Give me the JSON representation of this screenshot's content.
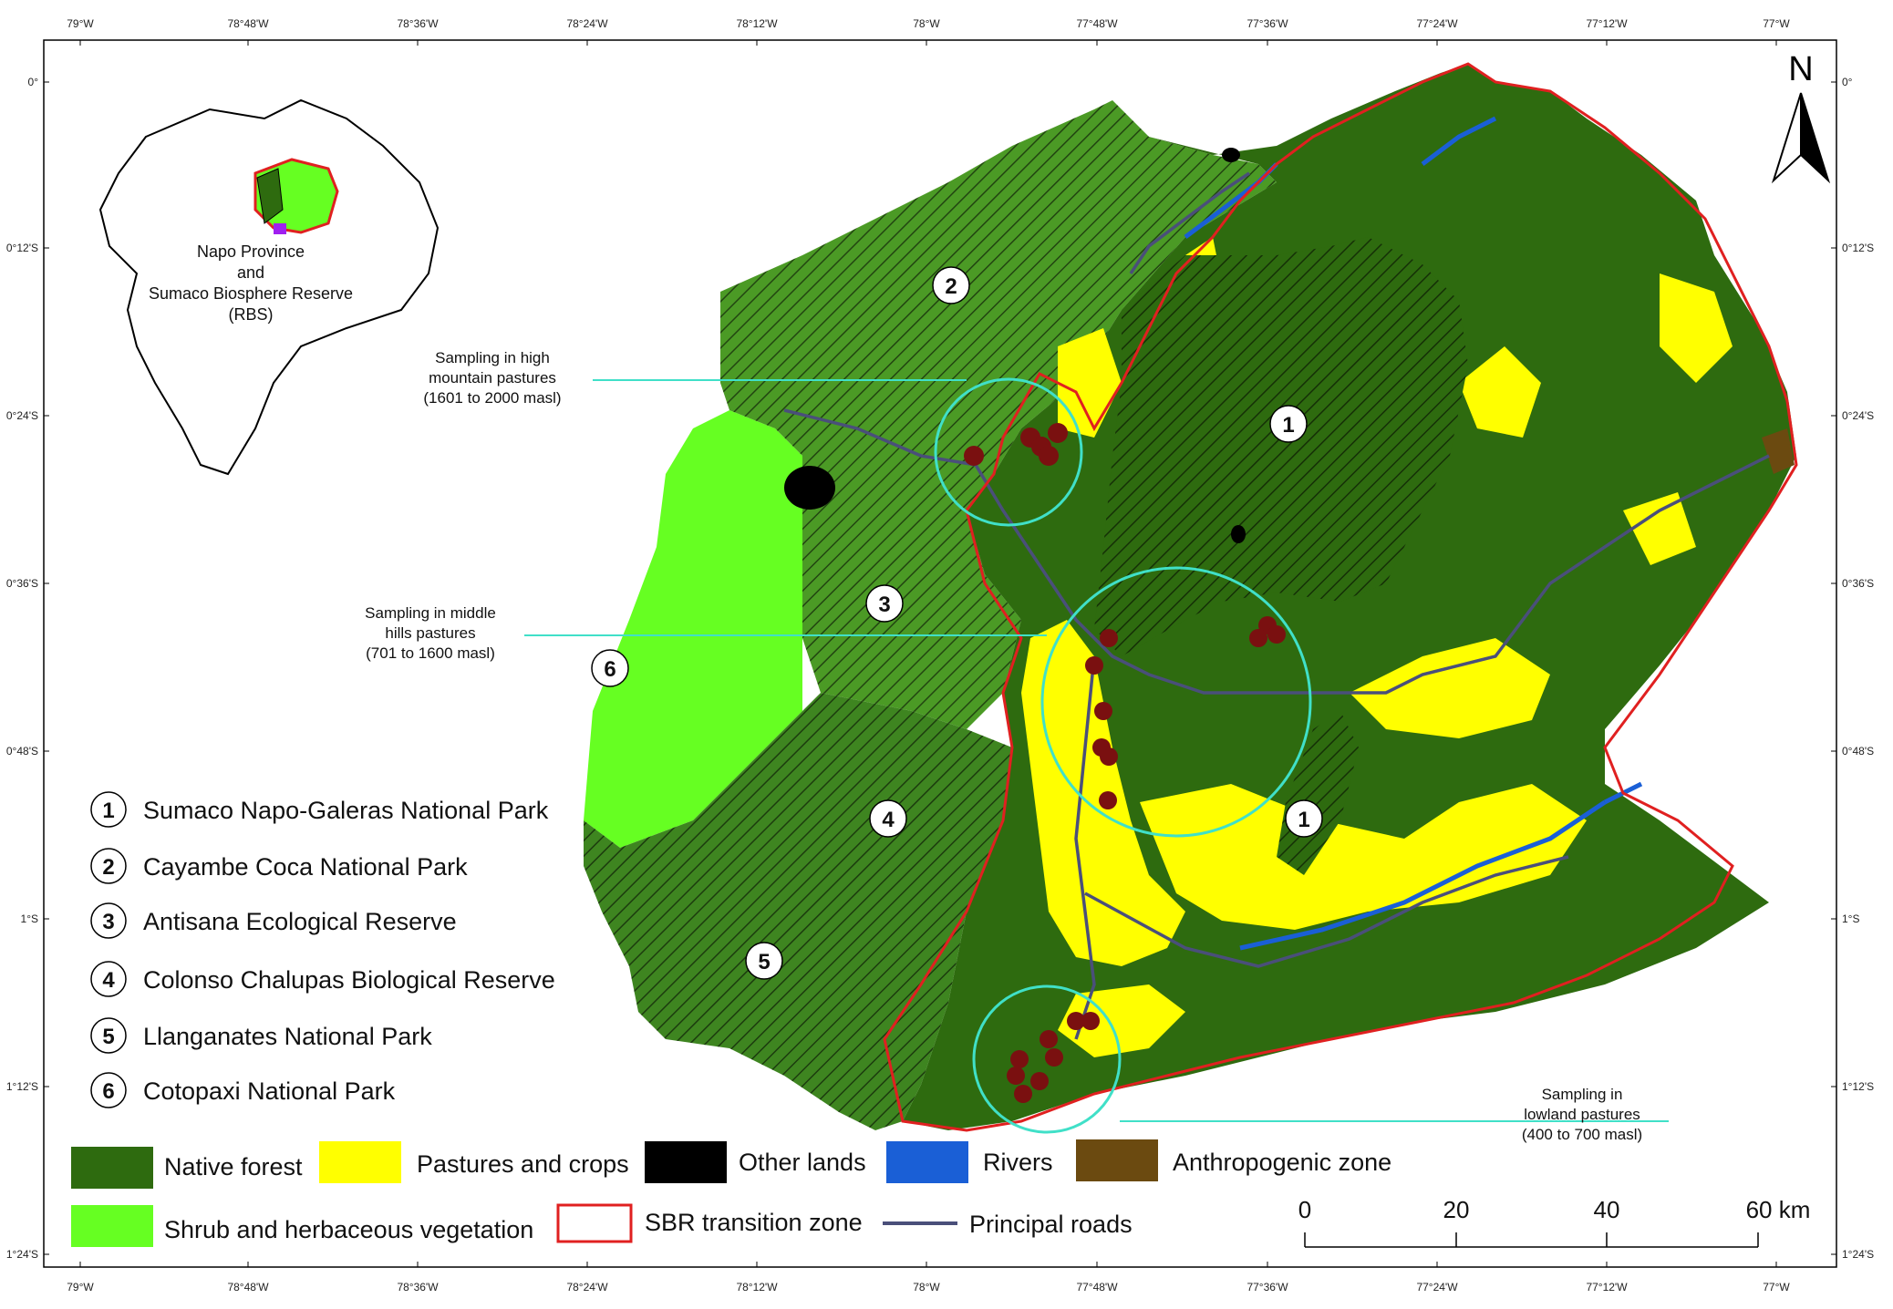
{
  "grid": {
    "top_labels": [
      "79°W",
      "78°48'W",
      "78°36'W",
      "78°24'W",
      "78°12'W",
      "78°W",
      "77°48'W",
      "77°36'W",
      "77°24'W",
      "77°12'W",
      "77°W"
    ],
    "bottom_labels": [
      "79°W",
      "78°48'W",
      "78°36'W",
      "78°24'W",
      "78°12'W",
      "78°W",
      "77°48'W",
      "77°36'W",
      "77°24'W",
      "77°12'W",
      "77°W"
    ],
    "left_labels": [
      "0°",
      "0°12'S",
      "0°24'S",
      "0°36'S",
      "0°48'S",
      "1°S",
      "1°12'S",
      "1°24'S"
    ],
    "right_labels": [
      "0°",
      "0°12'S",
      "0°24'S",
      "0°36'S",
      "0°48'S",
      "1°S",
      "1°12'S",
      "1°24'S"
    ]
  },
  "north_arrow": {
    "label": "N"
  },
  "inset": {
    "line1": "Napo Province",
    "line2": "and",
    "line3": "Sumaco Biosphere Reserve",
    "line4": "(RBS)"
  },
  "area_labels": [
    "1",
    "2",
    "3",
    "4",
    "5",
    "6",
    "1"
  ],
  "annotations": {
    "high": [
      "Sampling in high",
      "mountain pastures",
      "(1601 to 2000 masl)"
    ],
    "middle": [
      "Sampling in middle",
      "hills pastures",
      "(701 to 1600 masl)"
    ],
    "low": [
      "Sampling in",
      "lowland pastures",
      "(400 to 700 masl)"
    ]
  },
  "protected_areas": [
    {
      "num": "1",
      "name": "Sumaco Napo-Galeras National Park"
    },
    {
      "num": "2",
      "name": "Cayambe Coca National Park"
    },
    {
      "num": "3",
      "name": "Antisana Ecological Reserve"
    },
    {
      "num": "4",
      "name": "Colonso Chalupas Biological Reserve"
    },
    {
      "num": "5",
      "name": "Llanganates National Park"
    },
    {
      "num": "6",
      "name": "Cotopaxi National Park"
    }
  ],
  "legend": {
    "native_forest": "Native forest",
    "pastures": "Pastures and crops",
    "other_lands": "Other lands",
    "rivers": "Rivers",
    "anthropogenic": "Anthropogenic zone",
    "shrub": "Shrub and herbaceous vegetation",
    "sbr": "SBR transition zone",
    "roads": "Principal roads"
  },
  "colors": {
    "native_forest": "#2e6b0f",
    "pastures": "#ffff00",
    "other_lands": "#000000",
    "rivers": "#1a5fd6",
    "anthropogenic": "#6b4a10",
    "shrub": "#66ff22",
    "sbr": "#e02020",
    "roads": "#4a4f7a",
    "sampling_circle": "#40e0c8",
    "sampling_point": "#7a1010"
  },
  "scale_bar": {
    "ticks": [
      "0",
      "20",
      "40",
      "60 km"
    ]
  }
}
